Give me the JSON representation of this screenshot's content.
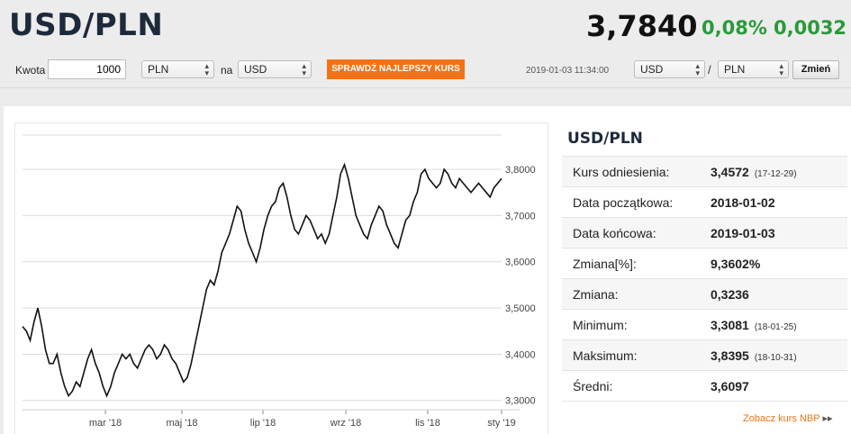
{
  "header": {
    "pair": "USD/PLN",
    "rate": "3,7840",
    "change_pct": "0,08%",
    "change_abs": "0,0032"
  },
  "toolbar": {
    "amount_label": "Kwota",
    "amount_value": "1000",
    "from_currency": "PLN",
    "to_label": "na",
    "to_currency": "USD",
    "best_rate_button": "SPRAWDŹ NAJLEPSZY KURS",
    "timestamp": "2019-01-03 11:34:00",
    "base_currency": "USD",
    "separator": "/",
    "quote_currency": "PLN",
    "change_button": "Zmień"
  },
  "info": {
    "title": "USD/PLN",
    "rows": [
      {
        "label": "Kurs odniesienia:",
        "value": "3,4572",
        "sub": "(17-12-29)"
      },
      {
        "label": "Data początkowa:",
        "value": "2018-01-02",
        "sub": ""
      },
      {
        "label": "Data końcowa:",
        "value": "2019-01-03",
        "sub": ""
      },
      {
        "label": "Zmiana[%]:",
        "value": "9,3602%",
        "sub": ""
      },
      {
        "label": "Zmiana:",
        "value": "0,3236",
        "sub": ""
      },
      {
        "label": "Minimum:",
        "value": "3,3081",
        "sub": "(18-01-25)"
      },
      {
        "label": "Maksimum:",
        "value": "3,8395",
        "sub": "(18-10-31)"
      },
      {
        "label": "Średni:",
        "value": "3,6097",
        "sub": ""
      }
    ],
    "nbp_link": "Zobacz kurs NBP"
  },
  "chart_data": {
    "type": "line",
    "y_ticks": [
      "3,8000",
      "3,7000",
      "3,6000",
      "3,5000",
      "3,4000",
      "3,3000"
    ],
    "y_tick_values": [
      3.8,
      3.7,
      3.6,
      3.5,
      3.4,
      3.3
    ],
    "x_ticks": [
      "mar '18",
      "maj '18",
      "lip '18",
      "wrz '18",
      "lis '18",
      "sty '19"
    ],
    "ylim": [
      3.28,
      3.88
    ],
    "grid": true,
    "series": [
      {
        "values": [
          3.46,
          3.45,
          3.43,
          3.47,
          3.5,
          3.46,
          3.41,
          3.38,
          3.38,
          3.4,
          3.36,
          3.33,
          3.31,
          3.32,
          3.34,
          3.33,
          3.36,
          3.39,
          3.41,
          3.38,
          3.36,
          3.33,
          3.31,
          3.33,
          3.36,
          3.38,
          3.4,
          3.39,
          3.4,
          3.38,
          3.37,
          3.39,
          3.41,
          3.42,
          3.41,
          3.39,
          3.4,
          3.42,
          3.41,
          3.39,
          3.38,
          3.36,
          3.34,
          3.35,
          3.38,
          3.42,
          3.46,
          3.5,
          3.54,
          3.56,
          3.55,
          3.58,
          3.62,
          3.64,
          3.66,
          3.69,
          3.72,
          3.71,
          3.67,
          3.64,
          3.62,
          3.6,
          3.63,
          3.67,
          3.7,
          3.72,
          3.73,
          3.76,
          3.77,
          3.74,
          3.7,
          3.67,
          3.66,
          3.68,
          3.7,
          3.69,
          3.67,
          3.65,
          3.66,
          3.64,
          3.66,
          3.7,
          3.74,
          3.79,
          3.81,
          3.78,
          3.74,
          3.7,
          3.68,
          3.66,
          3.65,
          3.68,
          3.7,
          3.72,
          3.71,
          3.68,
          3.66,
          3.64,
          3.63,
          3.66,
          3.69,
          3.7,
          3.73,
          3.75,
          3.79,
          3.8,
          3.78,
          3.77,
          3.76,
          3.77,
          3.8,
          3.79,
          3.77,
          3.76,
          3.78,
          3.77,
          3.76,
          3.75,
          3.76,
          3.77,
          3.76,
          3.75,
          3.74,
          3.76,
          3.77,
          3.78
        ]
      }
    ]
  }
}
